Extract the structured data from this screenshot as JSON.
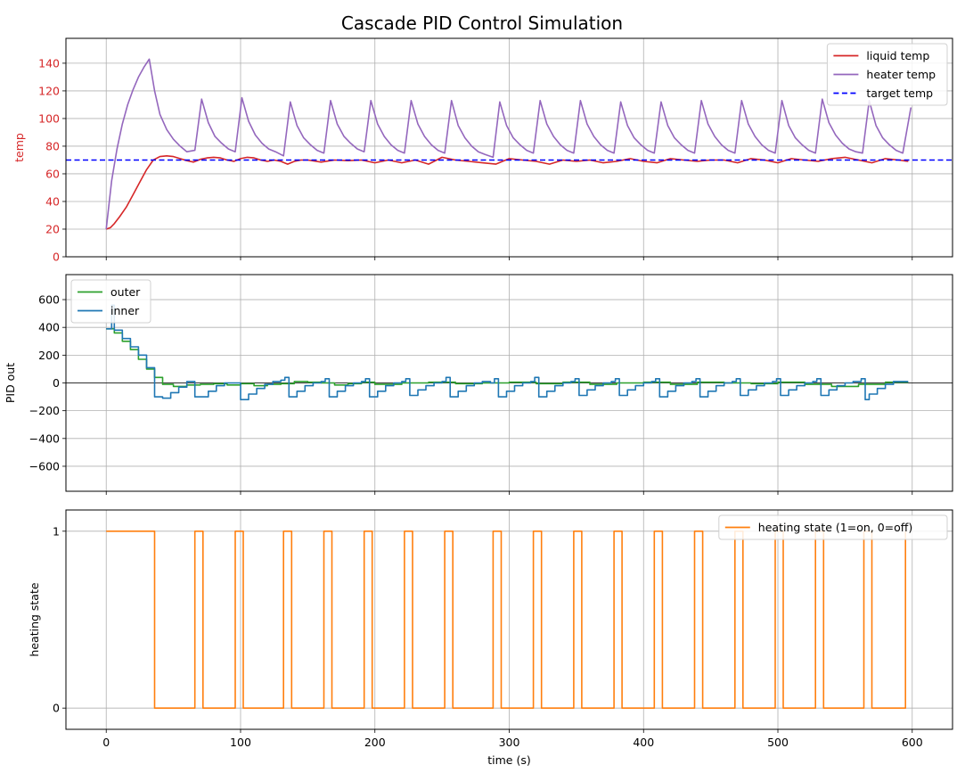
{
  "figure": {
    "title": "Cascade PID Control Simulation"
  },
  "chart_data": [
    {
      "type": "line",
      "ylabel": "temp",
      "ylabel_color": "#d62728",
      "ytick_color": "#d62728",
      "xlim": [
        -30,
        630
      ],
      "ylim": [
        0,
        158
      ],
      "xticks": [
        0,
        100,
        200,
        300,
        400,
        500,
        600
      ],
      "show_xticklabels": false,
      "yticks": [
        0,
        20,
        40,
        60,
        80,
        100,
        120,
        140
      ],
      "ytick_labels": [
        "0",
        "20",
        "40",
        "60",
        "80",
        "100",
        "120",
        "140"
      ],
      "grid": true,
      "legend": "top-right",
      "series": [
        {
          "name": "liquid temp",
          "color": "#d62728",
          "x": [
            0,
            3,
            6,
            10,
            15,
            20,
            25,
            30,
            35,
            40,
            45,
            50,
            55,
            60,
            65,
            70,
            75,
            80,
            85,
            90,
            95,
            100,
            105,
            110,
            115,
            120,
            125,
            130,
            135,
            140,
            145,
            150,
            160,
            170,
            180,
            190,
            200,
            210,
            220,
            230,
            240,
            250,
            260,
            270,
            280,
            290,
            300,
            310,
            320,
            330,
            340,
            350,
            360,
            370,
            380,
            390,
            400,
            410,
            420,
            430,
            440,
            450,
            460,
            470,
            480,
            490,
            500,
            510,
            520,
            530,
            540,
            550,
            560,
            570,
            580,
            590,
            597
          ],
          "y": [
            20,
            21,
            24,
            29,
            36,
            45,
            54,
            63,
            70,
            72.5,
            73,
            72.5,
            71,
            69.5,
            68.5,
            70.5,
            71.5,
            72,
            71.5,
            70,
            69,
            71,
            72,
            71.5,
            70,
            69,
            70,
            69,
            67,
            69,
            70,
            70,
            68.5,
            70,
            69.5,
            70,
            68,
            70,
            68,
            70,
            67,
            72,
            70,
            69,
            68,
            67,
            71,
            70,
            69,
            67,
            70,
            69,
            70,
            68,
            69,
            71,
            69,
            68,
            71,
            70,
            69,
            70,
            70,
            68,
            71,
            70,
            68,
            71,
            70,
            69,
            71,
            72,
            70,
            68,
            71,
            70,
            69
          ]
        },
        {
          "name": "heater temp",
          "color": "#9467bd",
          "x": [
            0,
            4,
            8,
            12,
            16,
            20,
            24,
            28,
            32,
            36,
            40,
            45,
            50,
            55,
            60,
            66,
            71,
            76,
            81,
            86,
            91,
            96,
            101,
            106,
            111,
            116,
            121,
            126,
            132,
            137,
            142,
            147,
            152,
            157,
            162,
            167,
            172,
            177,
            182,
            187,
            192,
            197,
            202,
            207,
            212,
            217,
            222,
            227,
            232,
            237,
            242,
            247,
            252,
            257,
            262,
            267,
            272,
            277,
            282,
            288,
            293,
            298,
            303,
            308,
            313,
            318,
            323,
            328,
            333,
            338,
            343,
            348,
            353,
            358,
            363,
            368,
            373,
            378,
            383,
            388,
            393,
            398,
            403,
            408,
            413,
            418,
            423,
            428,
            433,
            438,
            443,
            448,
            453,
            458,
            463,
            468,
            473,
            478,
            483,
            488,
            493,
            498,
            503,
            508,
            513,
            518,
            523,
            528,
            533,
            538,
            543,
            548,
            553,
            558,
            563,
            568,
            573,
            578,
            583,
            588,
            593,
            599
          ],
          "y": [
            20,
            55,
            78,
            96,
            110,
            121,
            130,
            137,
            143,
            120,
            103,
            92,
            85,
            80,
            76,
            77,
            114,
            97,
            87,
            82,
            78,
            76,
            115,
            98,
            88,
            82,
            78,
            76,
            73,
            112,
            95,
            86,
            81,
            77,
            75,
            113,
            96,
            87,
            82,
            78,
            76,
            113,
            96,
            87,
            81,
            77,
            75,
            113,
            96,
            87,
            81,
            77,
            75,
            113,
            95,
            86,
            80,
            76,
            74,
            72,
            112,
            95,
            86,
            81,
            77,
            75,
            113,
            96,
            87,
            81,
            77,
            75,
            113,
            96,
            87,
            81,
            77,
            75,
            112,
            95,
            86,
            81,
            77,
            75,
            112,
            95,
            86,
            81,
            77,
            75,
            113,
            96,
            87,
            81,
            77,
            75,
            113,
            96,
            87,
            81,
            77,
            75,
            113,
            95,
            86,
            81,
            77,
            75,
            114,
            97,
            88,
            82,
            78,
            76,
            75,
            113,
            95,
            86,
            81,
            77,
            75,
            108
          ]
        },
        {
          "name": "target temp",
          "color": "#0000ff",
          "dashed": true,
          "x": [
            -30,
            630
          ],
          "y": [
            70,
            70
          ]
        }
      ]
    },
    {
      "type": "line",
      "ylabel": "PID out",
      "xlim": [
        -30,
        630
      ],
      "ylim": [
        -780,
        780
      ],
      "xticks": [
        0,
        100,
        200,
        300,
        400,
        500,
        600
      ],
      "show_xticklabels": false,
      "yticks": [
        -600,
        -400,
        -200,
        0,
        200,
        400,
        600
      ],
      "ytick_labels": [
        "−600",
        "−400",
        "−200",
        "0",
        "200",
        "400",
        "600"
      ],
      "zero_line": true,
      "grid": true,
      "legend": "top-left",
      "series": [
        {
          "name": "outer",
          "color": "#2ca02c",
          "step": true,
          "x": [
            0,
            6,
            12,
            18,
            24,
            30,
            36,
            42,
            50,
            60,
            70,
            80,
            90,
            100,
            110,
            120,
            130,
            140,
            150,
            160,
            170,
            180,
            190,
            200,
            220,
            240,
            260,
            280,
            300,
            320,
            340,
            360,
            380,
            400,
            420,
            440,
            460,
            480,
            500,
            520,
            540,
            560,
            580,
            597
          ],
          "y": [
            390,
            360,
            300,
            240,
            170,
            100,
            40,
            -10,
            -25,
            -15,
            -10,
            -5,
            -15,
            -5,
            -20,
            -10,
            -5,
            10,
            5,
            0,
            -15,
            -5,
            5,
            -10,
            0,
            5,
            -5,
            0,
            5,
            -5,
            5,
            -10,
            0,
            5,
            -10,
            5,
            0,
            -5,
            5,
            -10,
            -25,
            -10,
            5,
            5
          ]
        },
        {
          "name": "inner",
          "color": "#1f77b4",
          "step": true,
          "x": [
            0,
            4,
            6,
            12,
            18,
            24,
            30,
            36,
            42,
            48,
            54,
            60,
            66,
            70,
            76,
            82,
            88,
            94,
            96,
            100,
            106,
            112,
            118,
            124,
            130,
            133,
            136,
            142,
            148,
            154,
            160,
            163,
            166,
            172,
            178,
            184,
            190,
            193,
            196,
            202,
            208,
            214,
            220,
            223,
            226,
            232,
            238,
            244,
            250,
            253,
            256,
            262,
            268,
            274,
            280,
            286,
            289,
            292,
            298,
            304,
            310,
            316,
            319,
            322,
            328,
            334,
            340,
            346,
            349,
            352,
            358,
            364,
            370,
            376,
            379,
            382,
            388,
            394,
            400,
            406,
            409,
            412,
            418,
            424,
            430,
            436,
            439,
            442,
            448,
            454,
            460,
            466,
            469,
            472,
            478,
            484,
            490,
            496,
            499,
            502,
            508,
            514,
            520,
            526,
            529,
            532,
            538,
            544,
            550,
            556,
            562,
            565,
            568,
            574,
            580,
            586,
            592,
            597
          ],
          "y": [
            390,
            560,
            380,
            320,
            260,
            200,
            110,
            -100,
            -110,
            -70,
            -30,
            10,
            -100,
            -100,
            -60,
            -20,
            0,
            0,
            0,
            -120,
            -80,
            -40,
            -10,
            10,
            20,
            40,
            -100,
            -60,
            -20,
            0,
            10,
            30,
            -100,
            -60,
            -20,
            0,
            10,
            30,
            -100,
            -60,
            -20,
            0,
            10,
            30,
            -90,
            -50,
            -20,
            0,
            10,
            40,
            -100,
            -60,
            -20,
            0,
            10,
            0,
            30,
            -100,
            -60,
            -20,
            0,
            10,
            40,
            -100,
            -60,
            -20,
            0,
            10,
            30,
            -90,
            -50,
            -20,
            0,
            10,
            30,
            -90,
            -50,
            -20,
            0,
            10,
            30,
            -100,
            -60,
            -20,
            0,
            10,
            30,
            -100,
            -60,
            -20,
            0,
            10,
            30,
            -90,
            -50,
            -20,
            0,
            10,
            30,
            -90,
            -50,
            -20,
            0,
            10,
            30,
            -90,
            -50,
            -20,
            0,
            10,
            30,
            -120,
            -80,
            -40,
            -10,
            10,
            10,
            10
          ]
        }
      ]
    },
    {
      "type": "line",
      "ylabel": "heating state",
      "xlabel": "time (s)",
      "xlim": [
        -30,
        630
      ],
      "ylim": [
        -0.12,
        1.12
      ],
      "xticks": [
        0,
        100,
        200,
        300,
        400,
        500,
        600
      ],
      "show_xticklabels": true,
      "xtick_labels": [
        "0",
        "100",
        "200",
        "300",
        "400",
        "500",
        "600"
      ],
      "yticks": [
        0,
        1
      ],
      "ytick_labels": [
        "0",
        "1"
      ],
      "grid": true,
      "legend": "top-right",
      "series": [
        {
          "name": "heating state (1=on, 0=off)",
          "color": "#ff7f0e",
          "step": true,
          "x": [
            0,
            36,
            66,
            72,
            96,
            102,
            132,
            138,
            162,
            168,
            192,
            198,
            222,
            228,
            252,
            258,
            288,
            294,
            318,
            324,
            348,
            354,
            378,
            384,
            408,
            414,
            438,
            444,
            468,
            474,
            498,
            504,
            528,
            534,
            564,
            570,
            595
          ],
          "y": [
            1,
            0,
            1,
            0,
            1,
            0,
            1,
            0,
            1,
            0,
            1,
            0,
            1,
            0,
            1,
            0,
            1,
            0,
            1,
            0,
            1,
            0,
            1,
            0,
            1,
            0,
            1,
            0,
            1,
            0,
            1,
            0,
            1,
            0,
            1,
            0,
            1
          ]
        }
      ]
    }
  ]
}
